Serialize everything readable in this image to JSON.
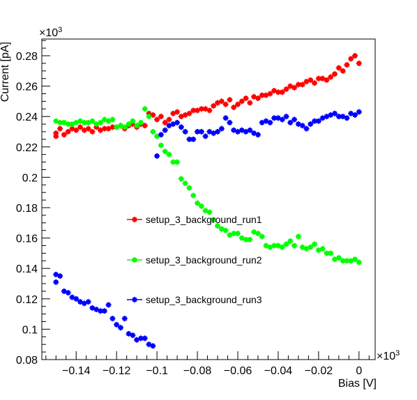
{
  "chart_data": {
    "type": "scatter",
    "xlabel": "Bias [V]",
    "ylabel": "Current [pA]",
    "x_multiplier": "×10",
    "x_exponent": "3",
    "y_multiplier": "×10",
    "y_exponent": "3",
    "xlim": [
      -0.157,
      0.008
    ],
    "ylim": [
      0.08,
      0.291
    ],
    "xticks": [
      -0.14,
      -0.12,
      -0.1,
      -0.08,
      -0.06,
      -0.04,
      -0.02,
      0
    ],
    "xtick_labels": [
      "−0.14",
      "−0.12",
      "−0.1",
      "−0.08",
      "−0.06",
      "−0.04",
      "−0.02",
      "0"
    ],
    "yticks": [
      0.08,
      0.1,
      0.12,
      0.14,
      0.16,
      0.18,
      0.2,
      0.22,
      0.24,
      0.26,
      0.28
    ],
    "ytick_labels": [
      "0.08",
      "0.1",
      "0.12",
      "0.14",
      "0.16",
      "0.18",
      "0.2",
      "0.22",
      "0.24",
      "0.26",
      "0.28"
    ],
    "legend_position": "center",
    "series": [
      {
        "name": "setup_3_background_run1",
        "color": "#ff0000",
        "x": [
          -0.15,
          -0.15,
          -0.148,
          -0.146,
          -0.144,
          -0.142,
          -0.14,
          -0.138,
          -0.136,
          -0.134,
          -0.132,
          -0.13,
          -0.128,
          -0.126,
          -0.124,
          -0.122,
          -0.12,
          -0.118,
          -0.116,
          -0.114,
          -0.112,
          -0.11,
          -0.108,
          -0.106,
          -0.104,
          -0.102,
          -0.1,
          -0.098,
          -0.096,
          -0.094,
          -0.092,
          -0.09,
          -0.088,
          -0.086,
          -0.084,
          -0.082,
          -0.08,
          -0.078,
          -0.076,
          -0.074,
          -0.072,
          -0.07,
          -0.068,
          -0.066,
          -0.064,
          -0.062,
          -0.06,
          -0.058,
          -0.056,
          -0.054,
          -0.052,
          -0.05,
          -0.048,
          -0.046,
          -0.044,
          -0.042,
          -0.04,
          -0.038,
          -0.036,
          -0.034,
          -0.032,
          -0.03,
          -0.028,
          -0.026,
          -0.024,
          -0.022,
          -0.02,
          -0.018,
          -0.016,
          -0.014,
          -0.012,
          -0.01,
          -0.008,
          -0.006,
          -0.004,
          -0.002,
          0.0
        ],
        "y": [
          0.227,
          0.229,
          0.232,
          0.228,
          0.23,
          0.232,
          0.231,
          0.233,
          0.231,
          0.232,
          0.23,
          0.233,
          0.231,
          0.232,
          0.232,
          0.233,
          0.233,
          0.234,
          0.232,
          0.234,
          0.235,
          0.233,
          0.235,
          0.234,
          0.242,
          0.241,
          0.238,
          0.24,
          0.236,
          0.238,
          0.242,
          0.243,
          0.24,
          0.241,
          0.242,
          0.244,
          0.244,
          0.245,
          0.245,
          0.244,
          0.247,
          0.249,
          0.25,
          0.248,
          0.251,
          0.246,
          0.248,
          0.25,
          0.252,
          0.249,
          0.253,
          0.252,
          0.254,
          0.254,
          0.255,
          0.257,
          0.256,
          0.256,
          0.258,
          0.26,
          0.259,
          0.261,
          0.261,
          0.263,
          0.264,
          0.262,
          0.265,
          0.265,
          0.264,
          0.266,
          0.268,
          0.272,
          0.27,
          0.274,
          0.278,
          0.28,
          0.275
        ]
      },
      {
        "name": "setup_3_background_run2",
        "color": "#00ff00",
        "x": [
          -0.15,
          -0.148,
          -0.146,
          -0.144,
          -0.142,
          -0.14,
          -0.138,
          -0.136,
          -0.134,
          -0.132,
          -0.13,
          -0.128,
          -0.126,
          -0.124,
          -0.122,
          -0.12,
          -0.118,
          -0.116,
          -0.114,
          -0.112,
          -0.11,
          -0.108,
          -0.106,
          -0.104,
          -0.102,
          -0.1,
          -0.098,
          -0.096,
          -0.094,
          -0.092,
          -0.09,
          -0.088,
          -0.086,
          -0.084,
          -0.082,
          -0.08,
          -0.078,
          -0.076,
          -0.074,
          -0.072,
          -0.07,
          -0.068,
          -0.066,
          -0.064,
          -0.062,
          -0.06,
          -0.058,
          -0.056,
          -0.054,
          -0.052,
          -0.05,
          -0.048,
          -0.046,
          -0.044,
          -0.042,
          -0.04,
          -0.038,
          -0.036,
          -0.034,
          -0.032,
          -0.03,
          -0.028,
          -0.026,
          -0.024,
          -0.022,
          -0.02,
          -0.018,
          -0.016,
          -0.014,
          -0.012,
          -0.01,
          -0.008,
          -0.006,
          -0.004,
          -0.002,
          0.0
        ],
        "y": [
          0.237,
          0.236,
          0.236,
          0.235,
          0.235,
          0.236,
          0.237,
          0.236,
          0.236,
          0.237,
          0.235,
          0.236,
          0.238,
          0.237,
          0.238,
          0.233,
          0.234,
          0.233,
          0.235,
          0.237,
          0.234,
          0.236,
          0.245,
          0.24,
          0.23,
          0.227,
          0.221,
          0.217,
          0.215,
          0.21,
          0.21,
          0.199,
          0.196,
          0.193,
          0.188,
          0.183,
          0.181,
          0.178,
          0.177,
          0.172,
          0.168,
          0.166,
          0.165,
          0.162,
          0.163,
          0.163,
          0.16,
          0.159,
          0.159,
          0.164,
          0.163,
          0.161,
          0.155,
          0.154,
          0.155,
          0.155,
          0.154,
          0.156,
          0.158,
          0.155,
          0.161,
          0.154,
          0.153,
          0.154,
          0.156,
          0.152,
          0.153,
          0.15,
          0.15,
          0.146,
          0.147,
          0.145,
          0.145,
          0.145,
          0.146,
          0.144
        ]
      },
      {
        "name": "setup_3_background_run3",
        "color": "#0000ff",
        "x": [
          -0.15,
          -0.15,
          -0.148,
          -0.146,
          -0.144,
          -0.142,
          -0.14,
          -0.138,
          -0.136,
          -0.134,
          -0.132,
          -0.13,
          -0.128,
          -0.126,
          -0.124,
          -0.122,
          -0.12,
          -0.118,
          -0.116,
          -0.114,
          -0.112,
          -0.11,
          -0.108,
          -0.106,
          -0.104,
          -0.102,
          -0.1,
          -0.098,
          -0.096,
          -0.094,
          -0.092,
          -0.09,
          -0.088,
          -0.086,
          -0.084,
          -0.082,
          -0.08,
          -0.078,
          -0.076,
          -0.074,
          -0.072,
          -0.07,
          -0.068,
          -0.066,
          -0.064,
          -0.062,
          -0.06,
          -0.058,
          -0.056,
          -0.054,
          -0.052,
          -0.05,
          -0.048,
          -0.046,
          -0.044,
          -0.042,
          -0.04,
          -0.038,
          -0.036,
          -0.034,
          -0.032,
          -0.03,
          -0.028,
          -0.026,
          -0.024,
          -0.022,
          -0.02,
          -0.018,
          -0.016,
          -0.014,
          -0.012,
          -0.01,
          -0.008,
          -0.006,
          -0.004,
          -0.002,
          0.0
        ],
        "y": [
          0.136,
          0.131,
          0.135,
          0.125,
          0.124,
          0.121,
          0.12,
          0.118,
          0.117,
          0.118,
          0.114,
          0.113,
          0.112,
          0.112,
          0.116,
          0.107,
          0.103,
          0.101,
          0.107,
          0.097,
          0.096,
          0.093,
          0.094,
          0.094,
          0.09,
          0.089,
          0.214,
          0.228,
          0.231,
          0.234,
          0.235,
          0.236,
          0.233,
          0.23,
          0.225,
          0.225,
          0.23,
          0.23,
          0.227,
          0.23,
          0.229,
          0.23,
          0.232,
          0.239,
          0.236,
          0.231,
          0.23,
          0.231,
          0.23,
          0.231,
          0.229,
          0.228,
          0.236,
          0.237,
          0.236,
          0.239,
          0.239,
          0.238,
          0.24,
          0.236,
          0.238,
          0.235,
          0.234,
          0.232,
          0.235,
          0.237,
          0.237,
          0.239,
          0.24,
          0.241,
          0.242,
          0.24,
          0.24,
          0.239,
          0.242,
          0.241,
          0.243
        ]
      }
    ]
  }
}
